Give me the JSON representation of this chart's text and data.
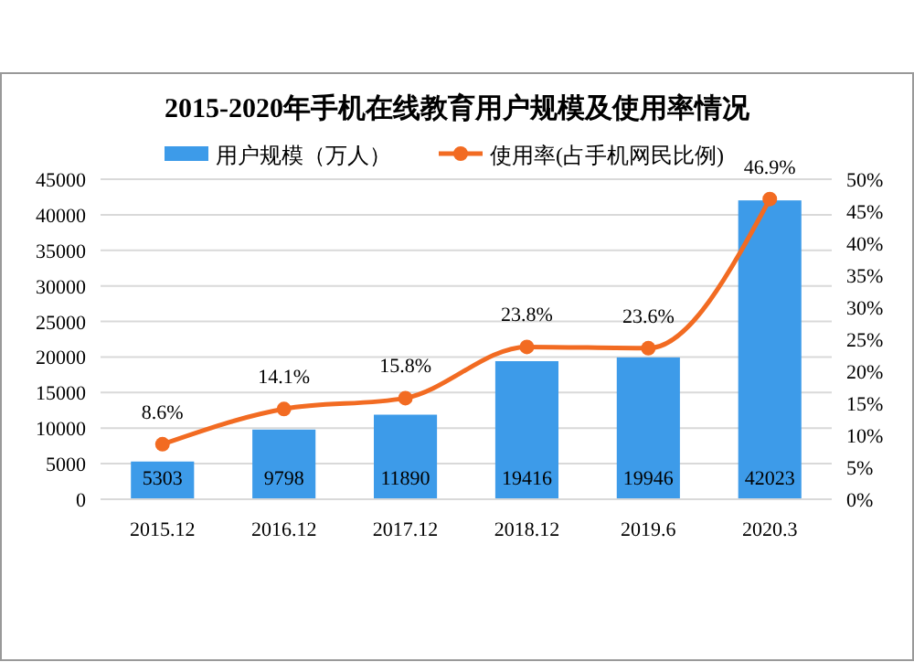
{
  "chart_data": {
    "type": "bar",
    "title": "2015-2020年手机在线教育用户规模及使用率情况",
    "categories": [
      "2015.12",
      "2016.12",
      "2017.12",
      "2018.12",
      "2019.6",
      "2020.3"
    ],
    "series": [
      {
        "name": "用户规模（万人）",
        "color": "#3d9be9",
        "values": [
          5303,
          9798,
          11890,
          19416,
          19946,
          42023
        ],
        "value_labels": [
          "5303",
          "9798",
          "11890",
          "19416",
          "19946",
          "42023"
        ]
      },
      {
        "name": "使用率(占手机网民比例)",
        "type": "line",
        "axis": "y2",
        "color": "#f26b22",
        "values": [
          8.6,
          14.1,
          15.8,
          23.8,
          23.6,
          46.9
        ],
        "value_labels": [
          "8.6%",
          "14.1%",
          "15.8%",
          "23.8%",
          "23.6%",
          "46.9%"
        ]
      }
    ],
    "ylim": [
      0,
      45000
    ],
    "yticks": [
      0,
      5000,
      10000,
      15000,
      20000,
      25000,
      30000,
      35000,
      40000,
      45000
    ],
    "y2lim": [
      0,
      50
    ],
    "y2ticks": [
      {
        "value": 0,
        "label": "0%"
      },
      {
        "value": 5,
        "label": "5%"
      },
      {
        "value": 10,
        "label": "10%"
      },
      {
        "value": 15,
        "label": "15%"
      },
      {
        "value": 20,
        "label": "20%"
      },
      {
        "value": 25,
        "label": "25%"
      },
      {
        "value": 30,
        "label": "30%"
      },
      {
        "value": 35,
        "label": "35%"
      },
      {
        "value": 40,
        "label": "40%"
      },
      {
        "value": 45,
        "label": "45%"
      },
      {
        "value": 50,
        "label": "50%"
      }
    ],
    "grid": "y",
    "legend": "top",
    "marker": "circle"
  }
}
